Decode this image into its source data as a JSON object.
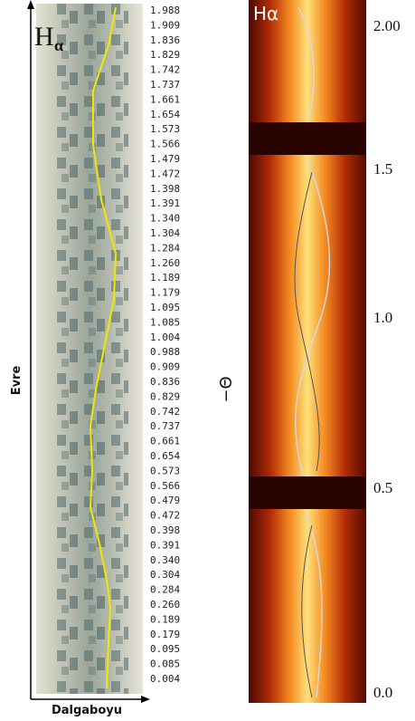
{
  "left_panel": {
    "label": {
      "main": "H",
      "sub": "α"
    },
    "y_axis_label": "Evre",
    "x_axis_label": "Dalgaboyu",
    "phases": [
      "1.988",
      "1.909",
      "1.836",
      "1.829",
      "1.742",
      "1.737",
      "1.661",
      "1.654",
      "1.573",
      "1.566",
      "1.479",
      "1.472",
      "1.398",
      "1.391",
      "1.340",
      "1.304",
      "1.284",
      "1.260",
      "1.189",
      "1.179",
      "1.095",
      "1.085",
      "1.004",
      "0.988",
      "0.909",
      "0.836",
      "0.829",
      "0.742",
      "0.737",
      "0.661",
      "0.654",
      "0.573",
      "0.566",
      "0.479",
      "0.472",
      "0.398",
      "0.391",
      "0.340",
      "0.304",
      "0.284",
      "0.260",
      "0.189",
      "0.179",
      "0.095",
      "0.085",
      "0.004"
    ]
  },
  "right_panel": {
    "label": "Hα",
    "y_axis_label": "−Θ",
    "ticks": [
      "2.00",
      "1.5",
      "1.0",
      "0.5",
      "0.0"
    ]
  }
}
